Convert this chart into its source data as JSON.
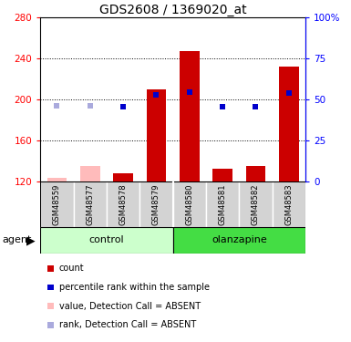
{
  "title": "GDS2608 / 1369020_at",
  "samples": [
    "GSM48559",
    "GSM48577",
    "GSM48578",
    "GSM48579",
    "GSM48580",
    "GSM48581",
    "GSM48582",
    "GSM48583"
  ],
  "bar_values": [
    123,
    135,
    128,
    210,
    247,
    132,
    135,
    232
  ],
  "bar_colors": [
    "#ffbbbb",
    "#ffbbbb",
    "#cc0000",
    "#cc0000",
    "#cc0000",
    "#cc0000",
    "#cc0000",
    "#cc0000"
  ],
  "bar_absent": [
    true,
    true,
    false,
    false,
    false,
    false,
    false,
    false
  ],
  "percentile_values": [
    194,
    194,
    193,
    204,
    207,
    193,
    193,
    206
  ],
  "percentile_absent": [
    true,
    true,
    false,
    false,
    false,
    false,
    false,
    false
  ],
  "pct_color_present": "#0000cc",
  "pct_color_absent": "#aaaadd",
  "ylim_left": [
    120,
    280
  ],
  "ylim_right": [
    0,
    100
  ],
  "yticks_left": [
    120,
    160,
    200,
    240,
    280
  ],
  "yticks_right": [
    0,
    25,
    50,
    75,
    100
  ],
  "yright_labels": [
    "0",
    "25",
    "50",
    "75",
    "100%"
  ],
  "grid_lines": [
    160,
    200,
    240
  ],
  "bar_width": 0.6,
  "bg_color": "#ffffff",
  "group_color_control": "#ccffcc",
  "group_color_olanzapine": "#44dd44",
  "sample_bg": "#d3d3d3",
  "legend": [
    {
      "color": "#cc0000",
      "marker": "s",
      "label": "count"
    },
    {
      "color": "#0000cc",
      "marker": "s",
      "label": "percentile rank within the sample"
    },
    {
      "color": "#ffbbbb",
      "marker": "s",
      "label": "value, Detection Call = ABSENT"
    },
    {
      "color": "#aaaadd",
      "marker": "s",
      "label": "rank, Detection Call = ABSENT"
    }
  ],
  "title_fontsize": 10,
  "tick_fontsize": 7.5,
  "sample_fontsize": 6,
  "group_fontsize": 8,
  "legend_fontsize": 7,
  "agent_fontsize": 8
}
